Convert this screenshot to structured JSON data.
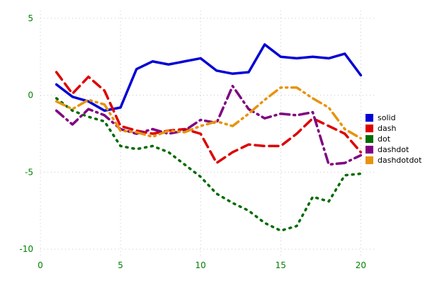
{
  "chart_data": {
    "type": "line",
    "title": "",
    "xlabel": "",
    "ylabel": "",
    "xlim": [
      0,
      21
    ],
    "ylim": [
      -10.5,
      5.5
    ],
    "xticks": [
      0,
      5,
      10,
      15,
      20
    ],
    "yticks": [
      -10,
      -5,
      0,
      5
    ],
    "grid": true,
    "legend_position": "right",
    "tick_label_color": "#008000",
    "grid_color": "#c8c8c8",
    "x": [
      1,
      2,
      3,
      4,
      5,
      6,
      7,
      8,
      9,
      10,
      11,
      12,
      13,
      14,
      15,
      16,
      17,
      18,
      19,
      20
    ],
    "series": [
      {
        "name": "solid",
        "color": "#0000d5",
        "dash": "solid",
        "values": [
          0.7,
          -0.1,
          -0.4,
          -1.0,
          -0.8,
          1.7,
          2.2,
          2.0,
          2.2,
          2.4,
          1.6,
          1.4,
          1.5,
          3.3,
          2.5,
          2.4,
          2.5,
          2.4,
          2.7,
          1.3
        ]
      },
      {
        "name": "dash",
        "color": "#dd0000",
        "dash": "dash",
        "values": [
          1.5,
          0.1,
          1.2,
          0.3,
          -2.0,
          -2.3,
          -2.5,
          -2.3,
          -2.2,
          -2.5,
          -4.4,
          -3.7,
          -3.2,
          -3.3,
          -3.3,
          -2.5,
          -1.5,
          -2.0,
          -2.5,
          -3.7
        ]
      },
      {
        "name": "dot",
        "color": "#006b00",
        "dash": "dot",
        "values": [
          -0.2,
          -1.0,
          -1.4,
          -1.7,
          -3.3,
          -3.5,
          -3.3,
          -3.7,
          -4.5,
          -5.3,
          -6.4,
          -7.0,
          -7.5,
          -8.3,
          -8.8,
          -8.5,
          -6.6,
          -6.9,
          -5.2,
          -5.1
        ]
      },
      {
        "name": "dashdot",
        "color": "#800080",
        "dash": "dashdot",
        "values": [
          -1.0,
          -1.9,
          -0.9,
          -1.3,
          -2.2,
          -2.5,
          -2.2,
          -2.5,
          -2.3,
          -1.6,
          -1.8,
          0.6,
          -0.9,
          -1.5,
          -1.2,
          -1.3,
          -1.1,
          -4.5,
          -4.4,
          -3.9
        ]
      },
      {
        "name": "dashdotdot",
        "color": "#e8930c",
        "dash": "dashdotdot",
        "values": [
          -0.4,
          -0.9,
          -0.3,
          -0.6,
          -2.3,
          -2.4,
          -2.7,
          -2.3,
          -2.4,
          -2.0,
          -1.7,
          -2.0,
          -1.2,
          -0.3,
          0.5,
          0.5,
          -0.2,
          -0.8,
          -2.2,
          -2.8
        ]
      }
    ]
  }
}
